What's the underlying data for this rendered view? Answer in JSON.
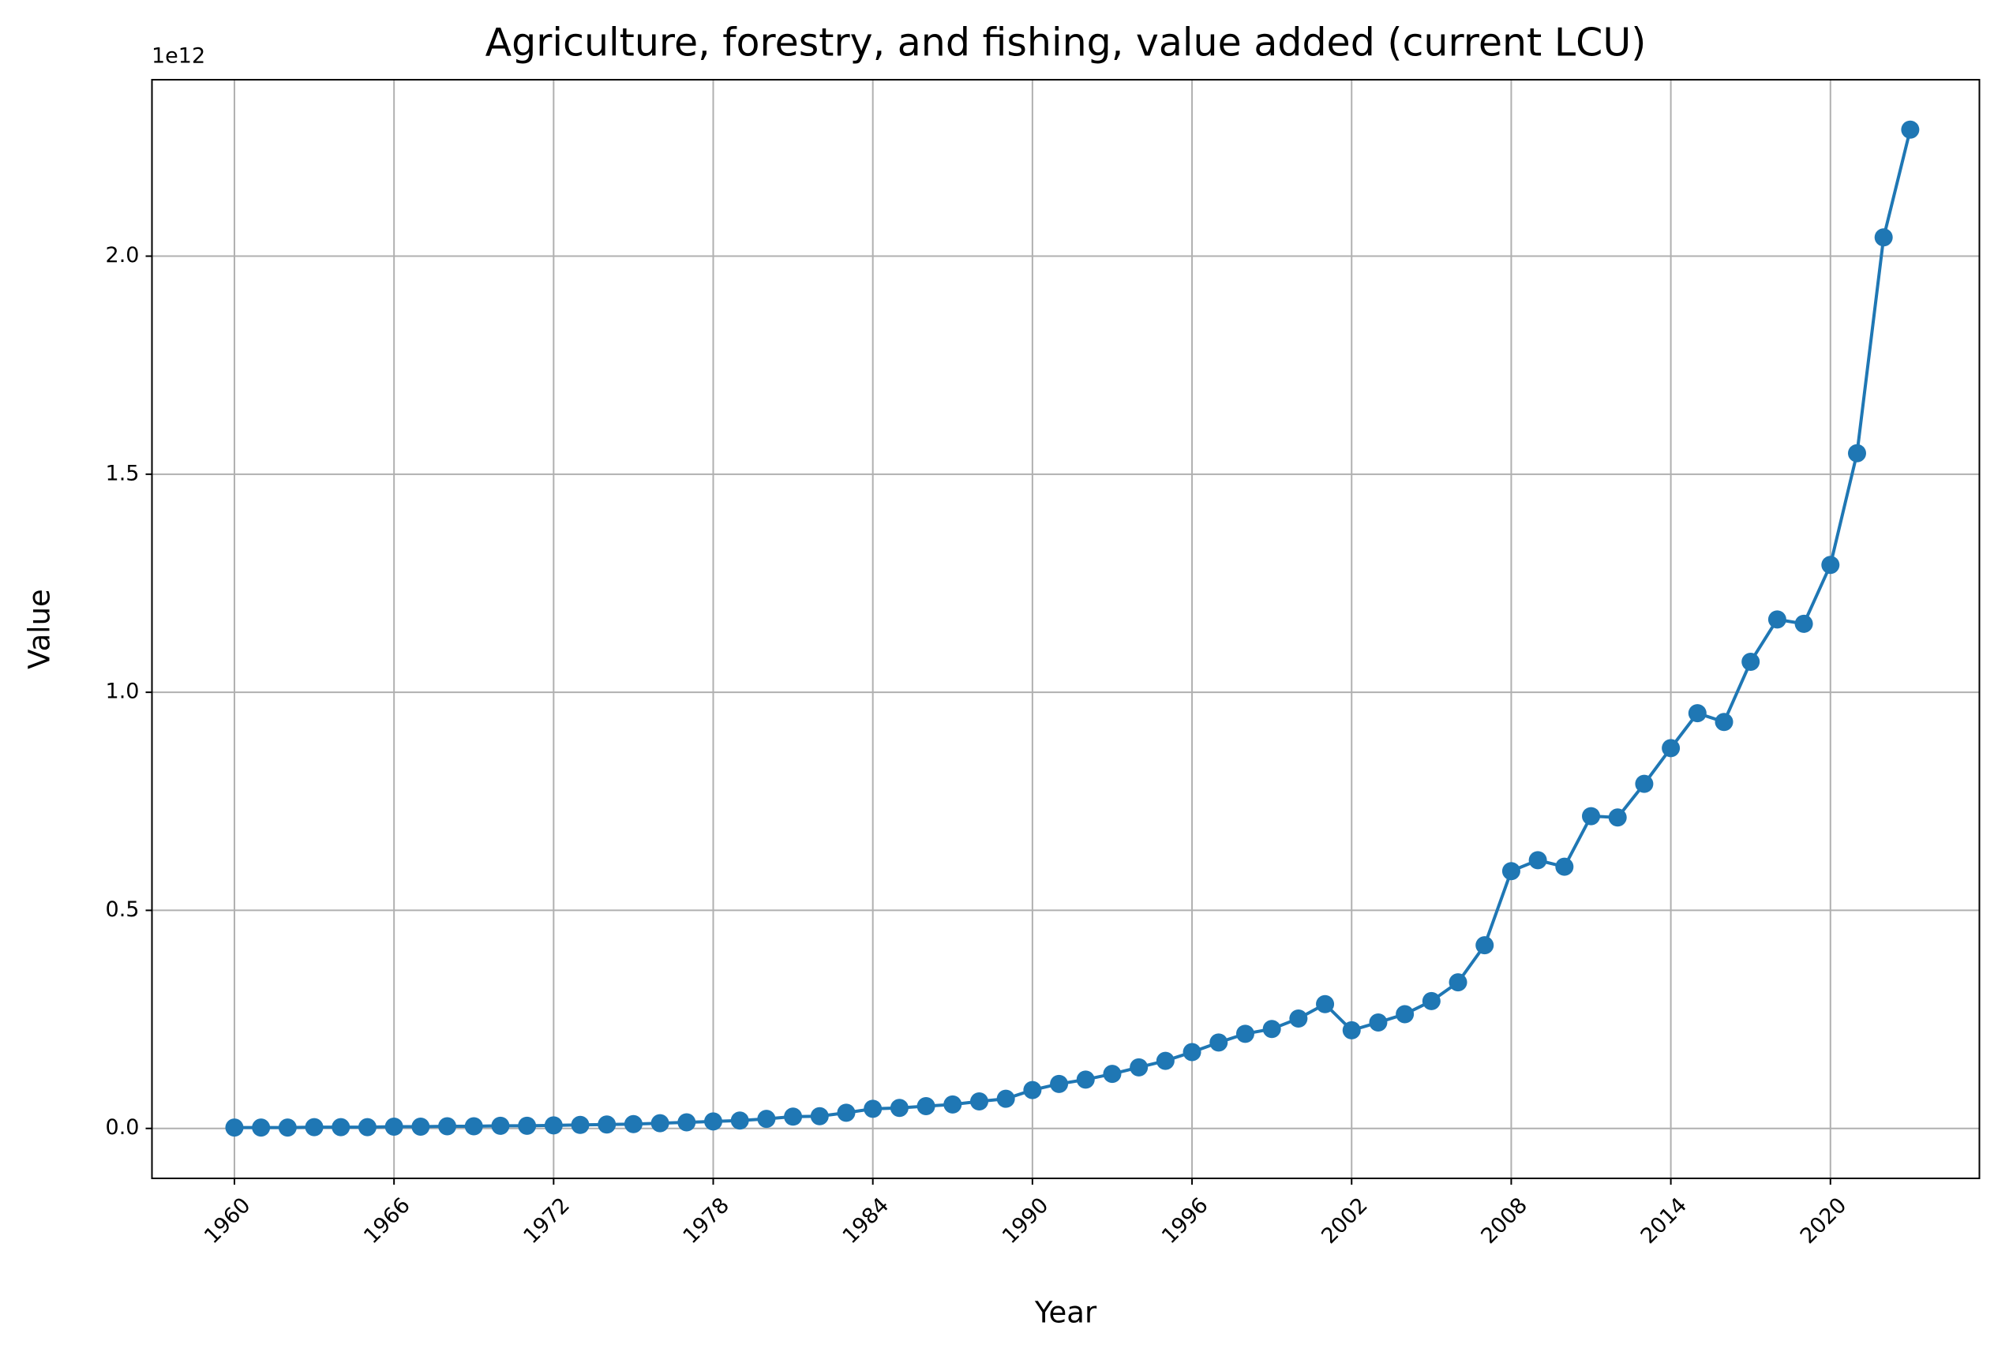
{
  "chart_data": {
    "type": "line",
    "title": "Agriculture, forestry, and fishing, value added (current LCU)",
    "x_label": "Year",
    "y_label": "Value",
    "y_offset_label": "1e12",
    "x": [
      1960,
      1961,
      1962,
      1963,
      1964,
      1965,
      1966,
      1967,
      1968,
      1969,
      1970,
      1971,
      1972,
      1973,
      1974,
      1975,
      1976,
      1977,
      1978,
      1979,
      1980,
      1981,
      1982,
      1983,
      1984,
      1985,
      1986,
      1987,
      1988,
      1989,
      1990,
      1991,
      1992,
      1993,
      1994,
      1995,
      1996,
      1997,
      1998,
      1999,
      2000,
      2001,
      2002,
      2003,
      2004,
      2005,
      2006,
      2007,
      2008,
      2009,
      2010,
      2011,
      2012,
      2013,
      2014,
      2015,
      2016,
      2017,
      2018,
      2019,
      2020,
      2021,
      2022,
      2023
    ],
    "series": [
      {
        "name": "Value",
        "color": "#1f77b4",
        "values": [
          0.002,
          0.002,
          0.002,
          0.003,
          0.003,
          0.003,
          0.004,
          0.004,
          0.005,
          0.005,
          0.006,
          0.006,
          0.007,
          0.008,
          0.009,
          0.01,
          0.012,
          0.014,
          0.016,
          0.018,
          0.022,
          0.027,
          0.028,
          0.036,
          0.045,
          0.047,
          0.051,
          0.055,
          0.062,
          0.068,
          0.088,
          0.102,
          0.112,
          0.125,
          0.14,
          0.155,
          0.175,
          0.197,
          0.217,
          0.228,
          0.252,
          0.285,
          0.225,
          0.243,
          0.262,
          0.292,
          0.335,
          0.42,
          0.59,
          0.615,
          0.6,
          0.716,
          0.713,
          0.79,
          0.872,
          0.952,
          0.932,
          1.07,
          1.167,
          1.157,
          1.292,
          1.548,
          2.043,
          2.29
        ]
      }
    ],
    "xlim": [
      1956.9,
      2025.6
    ],
    "xticks": [
      1960,
      1966,
      1972,
      1978,
      1984,
      1990,
      1996,
      2002,
      2008,
      2014,
      2020
    ],
    "ylim": [
      -0.1145,
      2.4045
    ],
    "yticks": [
      {
        "value": 0,
        "label": "0.0"
      },
      0.5,
      {
        "value": 1,
        "label": "1.0"
      },
      1.5,
      {
        "value": 2,
        "label": "2.0"
      }
    ],
    "grid": true
  }
}
